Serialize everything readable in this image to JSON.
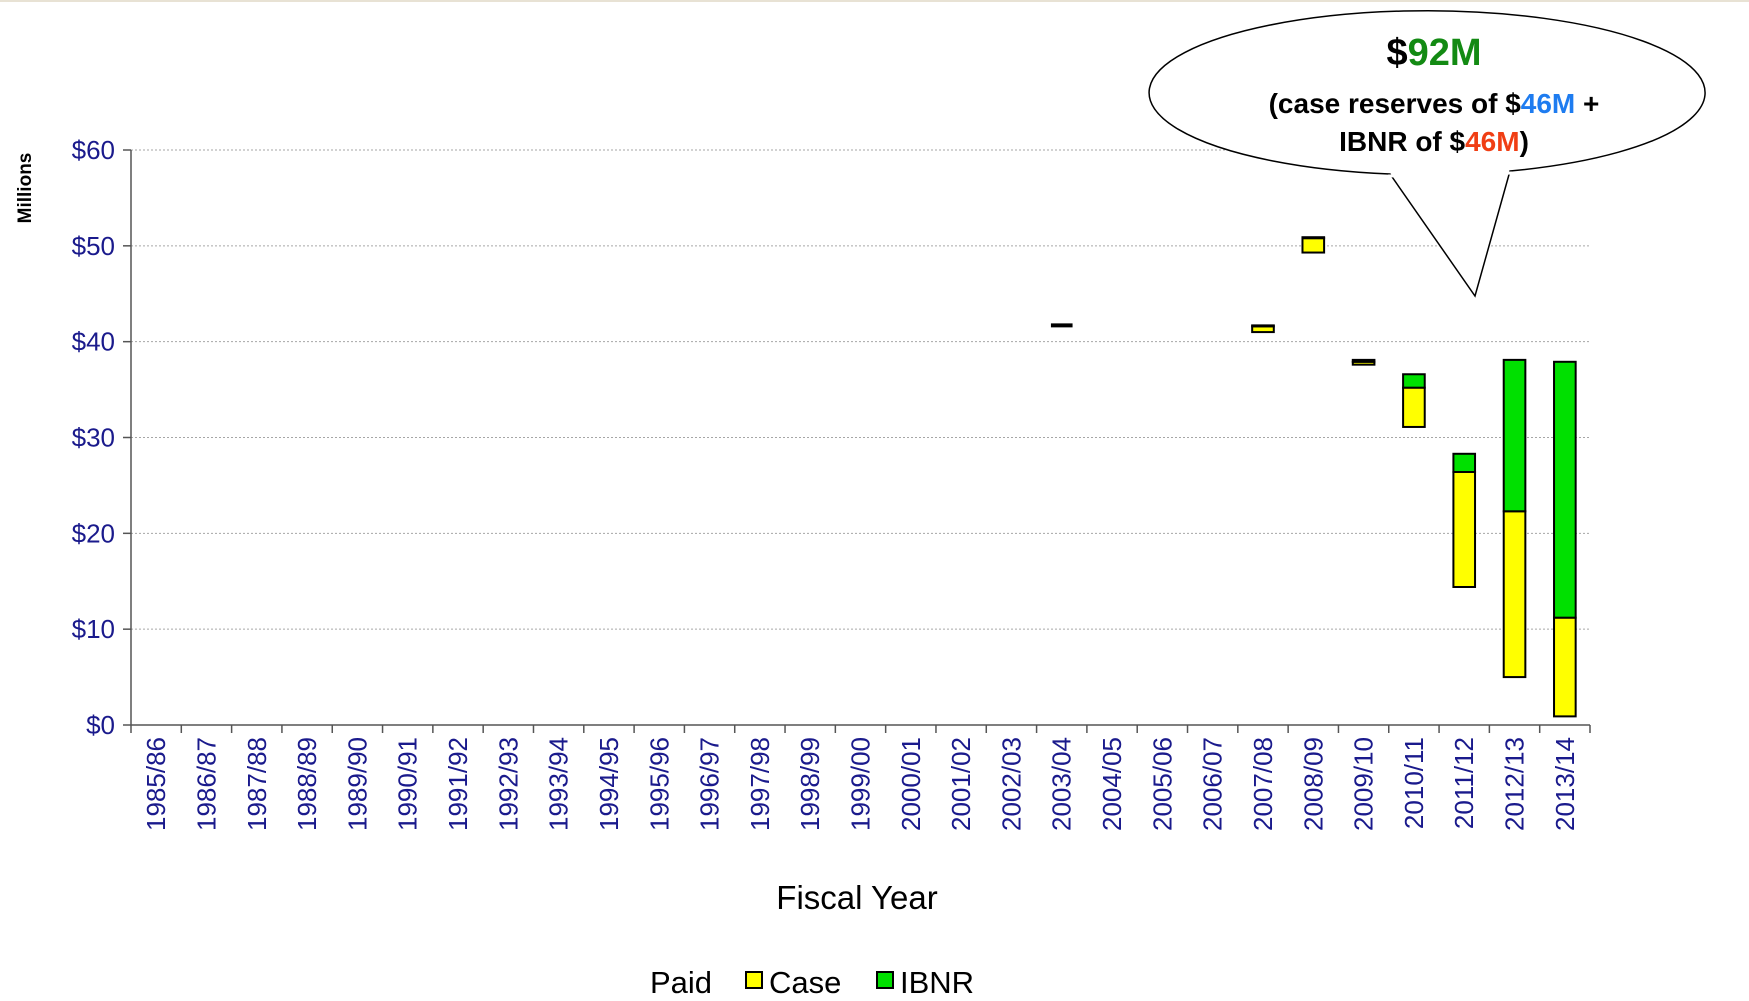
{
  "colors": {
    "axis_text": "#1a1a8c",
    "grid": "#a6a6a6",
    "case_fill": "#ffff00",
    "ibnr_fill": "#00e000",
    "outline": "#000000",
    "callout_total": "#138a13",
    "callout_case_value": "#1e7cf0",
    "callout_ibnr_value": "#f03e14"
  },
  "chart_data": {
    "type": "bar",
    "stacking": "floating-stacked",
    "ylabel": "Millions",
    "xlabel": "Fiscal Year",
    "ylim": [
      0,
      60
    ],
    "y_ticks": [
      0,
      10,
      20,
      30,
      40,
      50,
      60
    ],
    "y_tick_labels": [
      "$0",
      "$10",
      "$20",
      "$30",
      "$40",
      "$50",
      "$60"
    ],
    "grid": "horizontal",
    "legend_position": "bottom",
    "categories": [
      "1985/86",
      "1986/87",
      "1987/88",
      "1988/89",
      "1989/90",
      "1990/91",
      "1991/92",
      "1992/93",
      "1993/94",
      "1994/95",
      "1995/96",
      "1996/97",
      "1997/98",
      "1998/99",
      "1999/00",
      "2000/01",
      "2001/02",
      "2002/03",
      "2003/04",
      "2004/05",
      "2005/06",
      "2006/07",
      "2007/08",
      "2008/09",
      "2009/10",
      "2010/11",
      "2011/12",
      "2012/13",
      "2013/14"
    ],
    "series": [
      {
        "name": "Paid",
        "values": [
          null,
          null,
          null,
          null,
          null,
          null,
          null,
          null,
          null,
          null,
          null,
          null,
          null,
          null,
          null,
          null,
          null,
          null,
          41.7,
          null,
          null,
          null,
          41.0,
          49.3,
          37.6,
          31.1,
          14.4,
          5.0,
          0.9
        ]
      },
      {
        "name": "Case",
        "values": [
          null,
          null,
          null,
          null,
          null,
          null,
          null,
          null,
          null,
          null,
          null,
          null,
          null,
          null,
          null,
          null,
          null,
          null,
          0.0,
          null,
          null,
          null,
          0.6,
          1.5,
          0.3,
          4.1,
          12.0,
          17.3,
          10.3
        ]
      },
      {
        "name": "IBNR",
        "values": [
          null,
          null,
          null,
          null,
          null,
          null,
          null,
          null,
          null,
          null,
          null,
          null,
          null,
          null,
          null,
          null,
          null,
          null,
          0.0,
          null,
          null,
          null,
          0.1,
          0.1,
          0.2,
          1.4,
          1.9,
          15.8,
          26.7
        ]
      }
    ],
    "legend": [
      "Paid",
      "Case",
      "IBNR"
    ],
    "callout": {
      "line1_prefix": "$",
      "line1_value": "92M",
      "line2_text": "(case reserves of $",
      "line2_value": "46M",
      "line2_suffix": " +",
      "line3_text": "IBNR of $",
      "line3_value": "46M",
      "line3_suffix": ")",
      "points_to": "2011/12"
    }
  }
}
